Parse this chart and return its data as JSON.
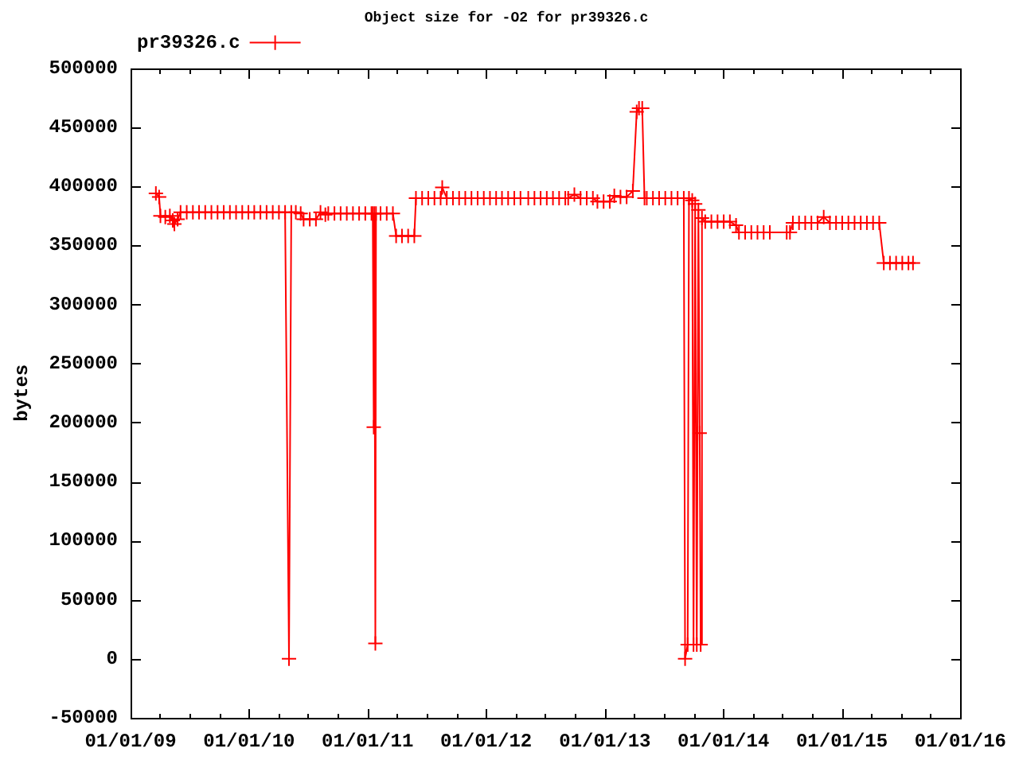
{
  "chart_data": {
    "type": "line",
    "title": "Object size for -O2 for pr39326.c",
    "ylabel": "bytes",
    "x": [
      "2009-03-20",
      "2009-03-30",
      "2009-04-03",
      "2009-04-18",
      "2009-05-02",
      "2009-05-11",
      "2009-05-16",
      "2009-05-26",
      "2009-06-04",
      "2009-06-23",
      "2009-07-12",
      "2009-07-31",
      "2009-08-19",
      "2009-09-07",
      "2009-09-26",
      "2009-10-15",
      "2009-11-03",
      "2009-11-22",
      "2009-12-11",
      "2009-12-30",
      "2010-01-17",
      "2010-02-05",
      "2010-02-24",
      "2010-03-15",
      "2010-04-03",
      "2010-04-22",
      "2010-05-04",
      "2010-05-11",
      "2010-05-25",
      "2010-06-09",
      "2010-06-18",
      "2010-07-07",
      "2010-07-26",
      "2010-08-09",
      "2010-08-24",
      "2010-09-02",
      "2010-09-21",
      "2010-10-10",
      "2010-10-29",
      "2010-11-17",
      "2010-12-06",
      "2010-12-25",
      "2011-01-13",
      "2011-01-17",
      "2011-01-20",
      "2011-01-22",
      "2011-01-25",
      "2011-01-27",
      "2011-02-10",
      "2011-03-01",
      "2011-03-20",
      "2011-03-30",
      "2011-04-17",
      "2011-05-06",
      "2011-05-25",
      "2011-05-30",
      "2011-06-18",
      "2011-07-07",
      "2011-07-26",
      "2011-08-14",
      "2011-08-19",
      "2011-09-02",
      "2011-09-21",
      "2011-10-10",
      "2011-10-29",
      "2011-11-17",
      "2011-12-06",
      "2011-12-25",
      "2012-01-13",
      "2012-02-01",
      "2012-02-19",
      "2012-03-09",
      "2012-03-28",
      "2012-04-16",
      "2012-05-10",
      "2012-05-29",
      "2012-06-17",
      "2012-07-06",
      "2012-07-25",
      "2012-08-13",
      "2012-09-01",
      "2012-09-10",
      "2012-09-29",
      "2012-10-18",
      "2012-11-06",
      "2012-11-25",
      "2012-12-09",
      "2012-12-28",
      "2013-01-16",
      "2013-01-30",
      "2013-02-18",
      "2013-03-09",
      "2013-03-28",
      "2013-04-09",
      "2013-04-16",
      "2013-04-26",
      "2013-05-03",
      "2013-05-10",
      "2013-05-29",
      "2013-06-17",
      "2013-07-06",
      "2013-07-25",
      "2013-08-13",
      "2013-09-01",
      "2013-09-05",
      "2013-09-13",
      "2013-09-17",
      "2013-09-27",
      "2013-10-01",
      "2013-10-06",
      "2013-10-11",
      "2013-10-16",
      "2013-10-20",
      "2013-10-23",
      "2013-10-27",
      "2013-11-06",
      "2013-11-25",
      "2013-12-14",
      "2014-01-02",
      "2014-01-21",
      "2014-02-09",
      "2014-02-18",
      "2014-03-09",
      "2014-03-28",
      "2014-04-16",
      "2014-05-05",
      "2014-05-24",
      "2014-07-15",
      "2014-07-25",
      "2014-08-03",
      "2014-08-22",
      "2014-09-10",
      "2014-09-29",
      "2014-10-18",
      "2014-11-06",
      "2014-11-25",
      "2014-12-14",
      "2015-01-02",
      "2015-01-21",
      "2015-02-09",
      "2015-02-28",
      "2015-03-19",
      "2015-04-07",
      "2015-04-26",
      "2015-05-10",
      "2015-05-29",
      "2015-06-17",
      "2015-07-06",
      "2015-07-25",
      "2015-08-08"
    ],
    "series": [
      {
        "name": "pr39326.c",
        "color": "#ff0000",
        "values": [
          394000,
          391000,
          375000,
          374000,
          375000,
          371000,
          368000,
          372000,
          378000,
          378000,
          378000,
          378000,
          378000,
          378000,
          378000,
          378000,
          378000,
          378000,
          378000,
          378000,
          378000,
          378000,
          378000,
          378000,
          378000,
          378000,
          0,
          378000,
          378000,
          377000,
          372000,
          372000,
          372000,
          378000,
          376000,
          377000,
          377000,
          377000,
          377000,
          377000,
          377000,
          377000,
          377000,
          377000,
          196000,
          377000,
          13000,
          377000,
          377000,
          377000,
          377000,
          358000,
          358000,
          358000,
          358000,
          390000,
          390000,
          390000,
          390000,
          390000,
          399000,
          390000,
          390000,
          390000,
          390000,
          390000,
          390000,
          390000,
          390000,
          390000,
          390000,
          390000,
          390000,
          390000,
          390000,
          390000,
          390000,
          390000,
          390000,
          390000,
          390000,
          390000,
          393000,
          390000,
          390000,
          390000,
          387000,
          387000,
          387000,
          392000,
          391000,
          391000,
          396000,
          463000,
          466000,
          466000,
          390000,
          390000,
          390000,
          390000,
          390000,
          390000,
          390000,
          390000,
          0,
          12000,
          390000,
          388000,
          12000,
          385000,
          12000,
          380000,
          191000,
          12000,
          373000,
          370000,
          370000,
          370000,
          370000,
          370000,
          367000,
          361000,
          361000,
          361000,
          361000,
          361000,
          361000,
          361000,
          361000,
          369000,
          369000,
          369000,
          369000,
          369000,
          374000,
          369000,
          369000,
          369000,
          369000,
          369000,
          369000,
          369000,
          369000,
          369000,
          335000,
          335000,
          335000,
          335000,
          335000,
          335000
        ]
      }
    ],
    "xlim": [
      "2009-01-01",
      "2016-01-01"
    ],
    "xticks": [
      {
        "value": "2009-01-01",
        "label": "01/01/09"
      },
      {
        "value": "2009-04-01",
        "label": null
      },
      {
        "value": "2009-07-01",
        "label": null
      },
      {
        "value": "2009-10-01",
        "label": null
      },
      {
        "value": "2010-01-01",
        "label": "01/01/10"
      },
      {
        "value": "2010-04-01",
        "label": null
      },
      {
        "value": "2010-07-01",
        "label": null
      },
      {
        "value": "2010-10-01",
        "label": null
      },
      {
        "value": "2011-01-01",
        "label": "01/01/11"
      },
      {
        "value": "2011-04-01",
        "label": null
      },
      {
        "value": "2011-07-01",
        "label": null
      },
      {
        "value": "2011-10-01",
        "label": null
      },
      {
        "value": "2012-01-01",
        "label": "01/01/12"
      },
      {
        "value": "2012-04-01",
        "label": null
      },
      {
        "value": "2012-07-01",
        "label": null
      },
      {
        "value": "2012-10-01",
        "label": null
      },
      {
        "value": "2013-01-01",
        "label": "01/01/13"
      },
      {
        "value": "2013-04-01",
        "label": null
      },
      {
        "value": "2013-07-01",
        "label": null
      },
      {
        "value": "2013-10-01",
        "label": null
      },
      {
        "value": "2014-01-01",
        "label": "01/01/14"
      },
      {
        "value": "2014-04-01",
        "label": null
      },
      {
        "value": "2014-07-01",
        "label": null
      },
      {
        "value": "2014-10-01",
        "label": null
      },
      {
        "value": "2015-01-01",
        "label": "01/01/15"
      },
      {
        "value": "2015-04-01",
        "label": null
      },
      {
        "value": "2015-07-01",
        "label": null
      },
      {
        "value": "2015-10-01",
        "label": null
      },
      {
        "value": "2016-01-01",
        "label": "01/01/16"
      }
    ],
    "ylim": [
      -50000,
      500000
    ],
    "yticks": [
      -50000,
      0,
      50000,
      100000,
      150000,
      200000,
      250000,
      300000,
      350000,
      400000,
      450000,
      500000
    ],
    "legend": "top left",
    "marker": "cross",
    "line_style": "solid"
  }
}
